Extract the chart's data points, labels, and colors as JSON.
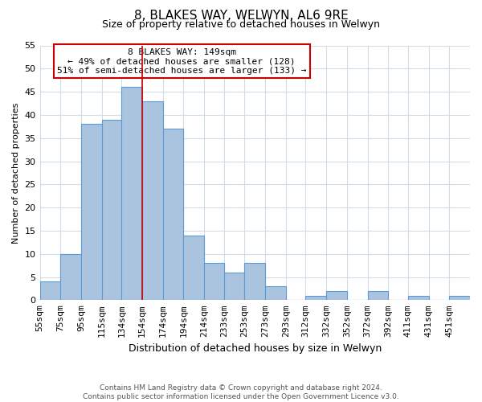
{
  "title": "8, BLAKES WAY, WELWYN, AL6 9RE",
  "subtitle": "Size of property relative to detached houses in Welwyn",
  "xlabel": "Distribution of detached houses by size in Welwyn",
  "ylabel": "Number of detached properties",
  "categories": [
    "55sqm",
    "75sqm",
    "95sqm",
    "115sqm",
    "134sqm",
    "154sqm",
    "174sqm",
    "194sqm",
    "214sqm",
    "233sqm",
    "253sqm",
    "273sqm",
    "293sqm",
    "312sqm",
    "332sqm",
    "352sqm",
    "372sqm",
    "392sqm",
    "411sqm",
    "431sqm",
    "451sqm"
  ],
  "values": [
    4,
    10,
    38,
    39,
    46,
    43,
    37,
    14,
    8,
    6,
    8,
    3,
    0,
    1,
    2,
    0,
    2,
    0,
    1,
    0,
    1
  ],
  "bar_color": "#aac4e0",
  "bar_edge_color": "#5b9bd5",
  "marker_label": "8 BLAKES WAY: 149sqm",
  "annotation_line1": "← 49% of detached houses are smaller (128)",
  "annotation_line2": "51% of semi-detached houses are larger (133) →",
  "marker_color": "#cc0000",
  "ylim": [
    0,
    55
  ],
  "yticks": [
    0,
    5,
    10,
    15,
    20,
    25,
    30,
    35,
    40,
    45,
    50,
    55
  ],
  "grid_color": "#d0dce8",
  "background_color": "#ffffff",
  "footer_line1": "Contains HM Land Registry data © Crown copyright and database right 2024.",
  "footer_line2": "Contains public sector information licensed under the Open Government Licence v3.0.",
  "bin_edges": [
    55,
    75,
    95,
    115,
    134,
    154,
    174,
    194,
    214,
    233,
    253,
    273,
    293,
    312,
    332,
    352,
    372,
    392,
    411,
    431,
    451,
    471
  ]
}
